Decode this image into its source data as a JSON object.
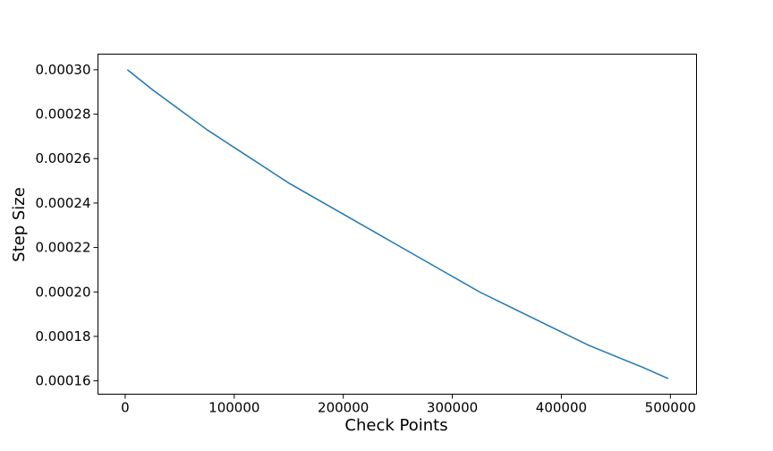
{
  "chart_data": {
    "type": "line",
    "title": "",
    "xlabel": "Check Points",
    "ylabel": "Step Size",
    "xlim": [
      -24950,
      523950
    ],
    "ylim": [
      0.000154,
      0.000307
    ],
    "xticks": [
      0,
      100000,
      200000,
      300000,
      400000,
      500000
    ],
    "xtick_labels": [
      "0",
      "100000",
      "200000",
      "300000",
      "400000",
      "500000"
    ],
    "yticks": [
      0.00016,
      0.00018,
      0.0002,
      0.00022,
      0.00024,
      0.00026,
      0.00028,
      0.0003
    ],
    "ytick_labels": [
      "0.00016",
      "0.00018",
      "0.00020",
      "0.00022",
      "0.00024",
      "0.00026",
      "0.00028",
      "0.00030"
    ],
    "grid": false,
    "series": [
      {
        "color": "#1f77b4",
        "x": [
          2000,
          25000,
          50000,
          75000,
          100000,
          125000,
          150000,
          175000,
          200000,
          225000,
          250000,
          275000,
          300000,
          325000,
          350000,
          375000,
          400000,
          425000,
          450000,
          475000,
          498000
        ],
        "y": [
          0.0003,
          0.000291,
          0.000282,
          0.000273,
          0.000265,
          0.000257,
          0.000249,
          0.000242,
          0.000235,
          0.000228,
          0.000221,
          0.000214,
          0.000207,
          0.0002,
          0.000194,
          0.000188,
          0.000182,
          0.000176,
          0.000171,
          0.000166,
          0.000161
        ]
      }
    ]
  }
}
